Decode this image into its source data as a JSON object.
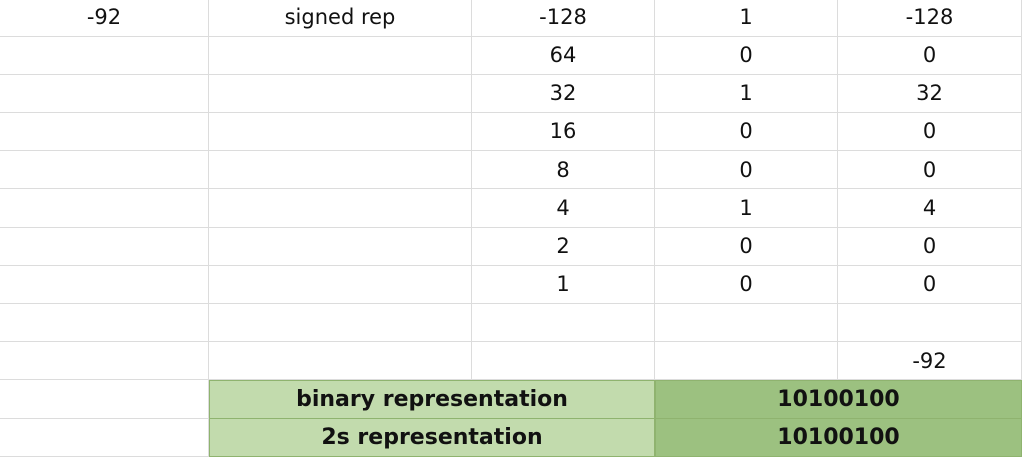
{
  "cells": {
    "a1": "-92",
    "b1": "signed rep",
    "c": [
      "-128",
      "64",
      "32",
      "16",
      "8",
      "4",
      "2",
      "1"
    ],
    "d": [
      "1",
      "0",
      "1",
      "0",
      "0",
      "1",
      "0",
      "0"
    ],
    "e": [
      "-128",
      "0",
      "32",
      "0",
      "0",
      "4",
      "0",
      "0"
    ],
    "e_sum": "-92"
  },
  "summary": {
    "binary_label": "binary representation",
    "binary_value": "10100100",
    "twos_label": "2s representation",
    "twos_value": "10100100"
  },
  "colors": {
    "label_fill": "#c2dbad",
    "value_fill": "#9cc180",
    "gridline": "#dcdcdc"
  }
}
